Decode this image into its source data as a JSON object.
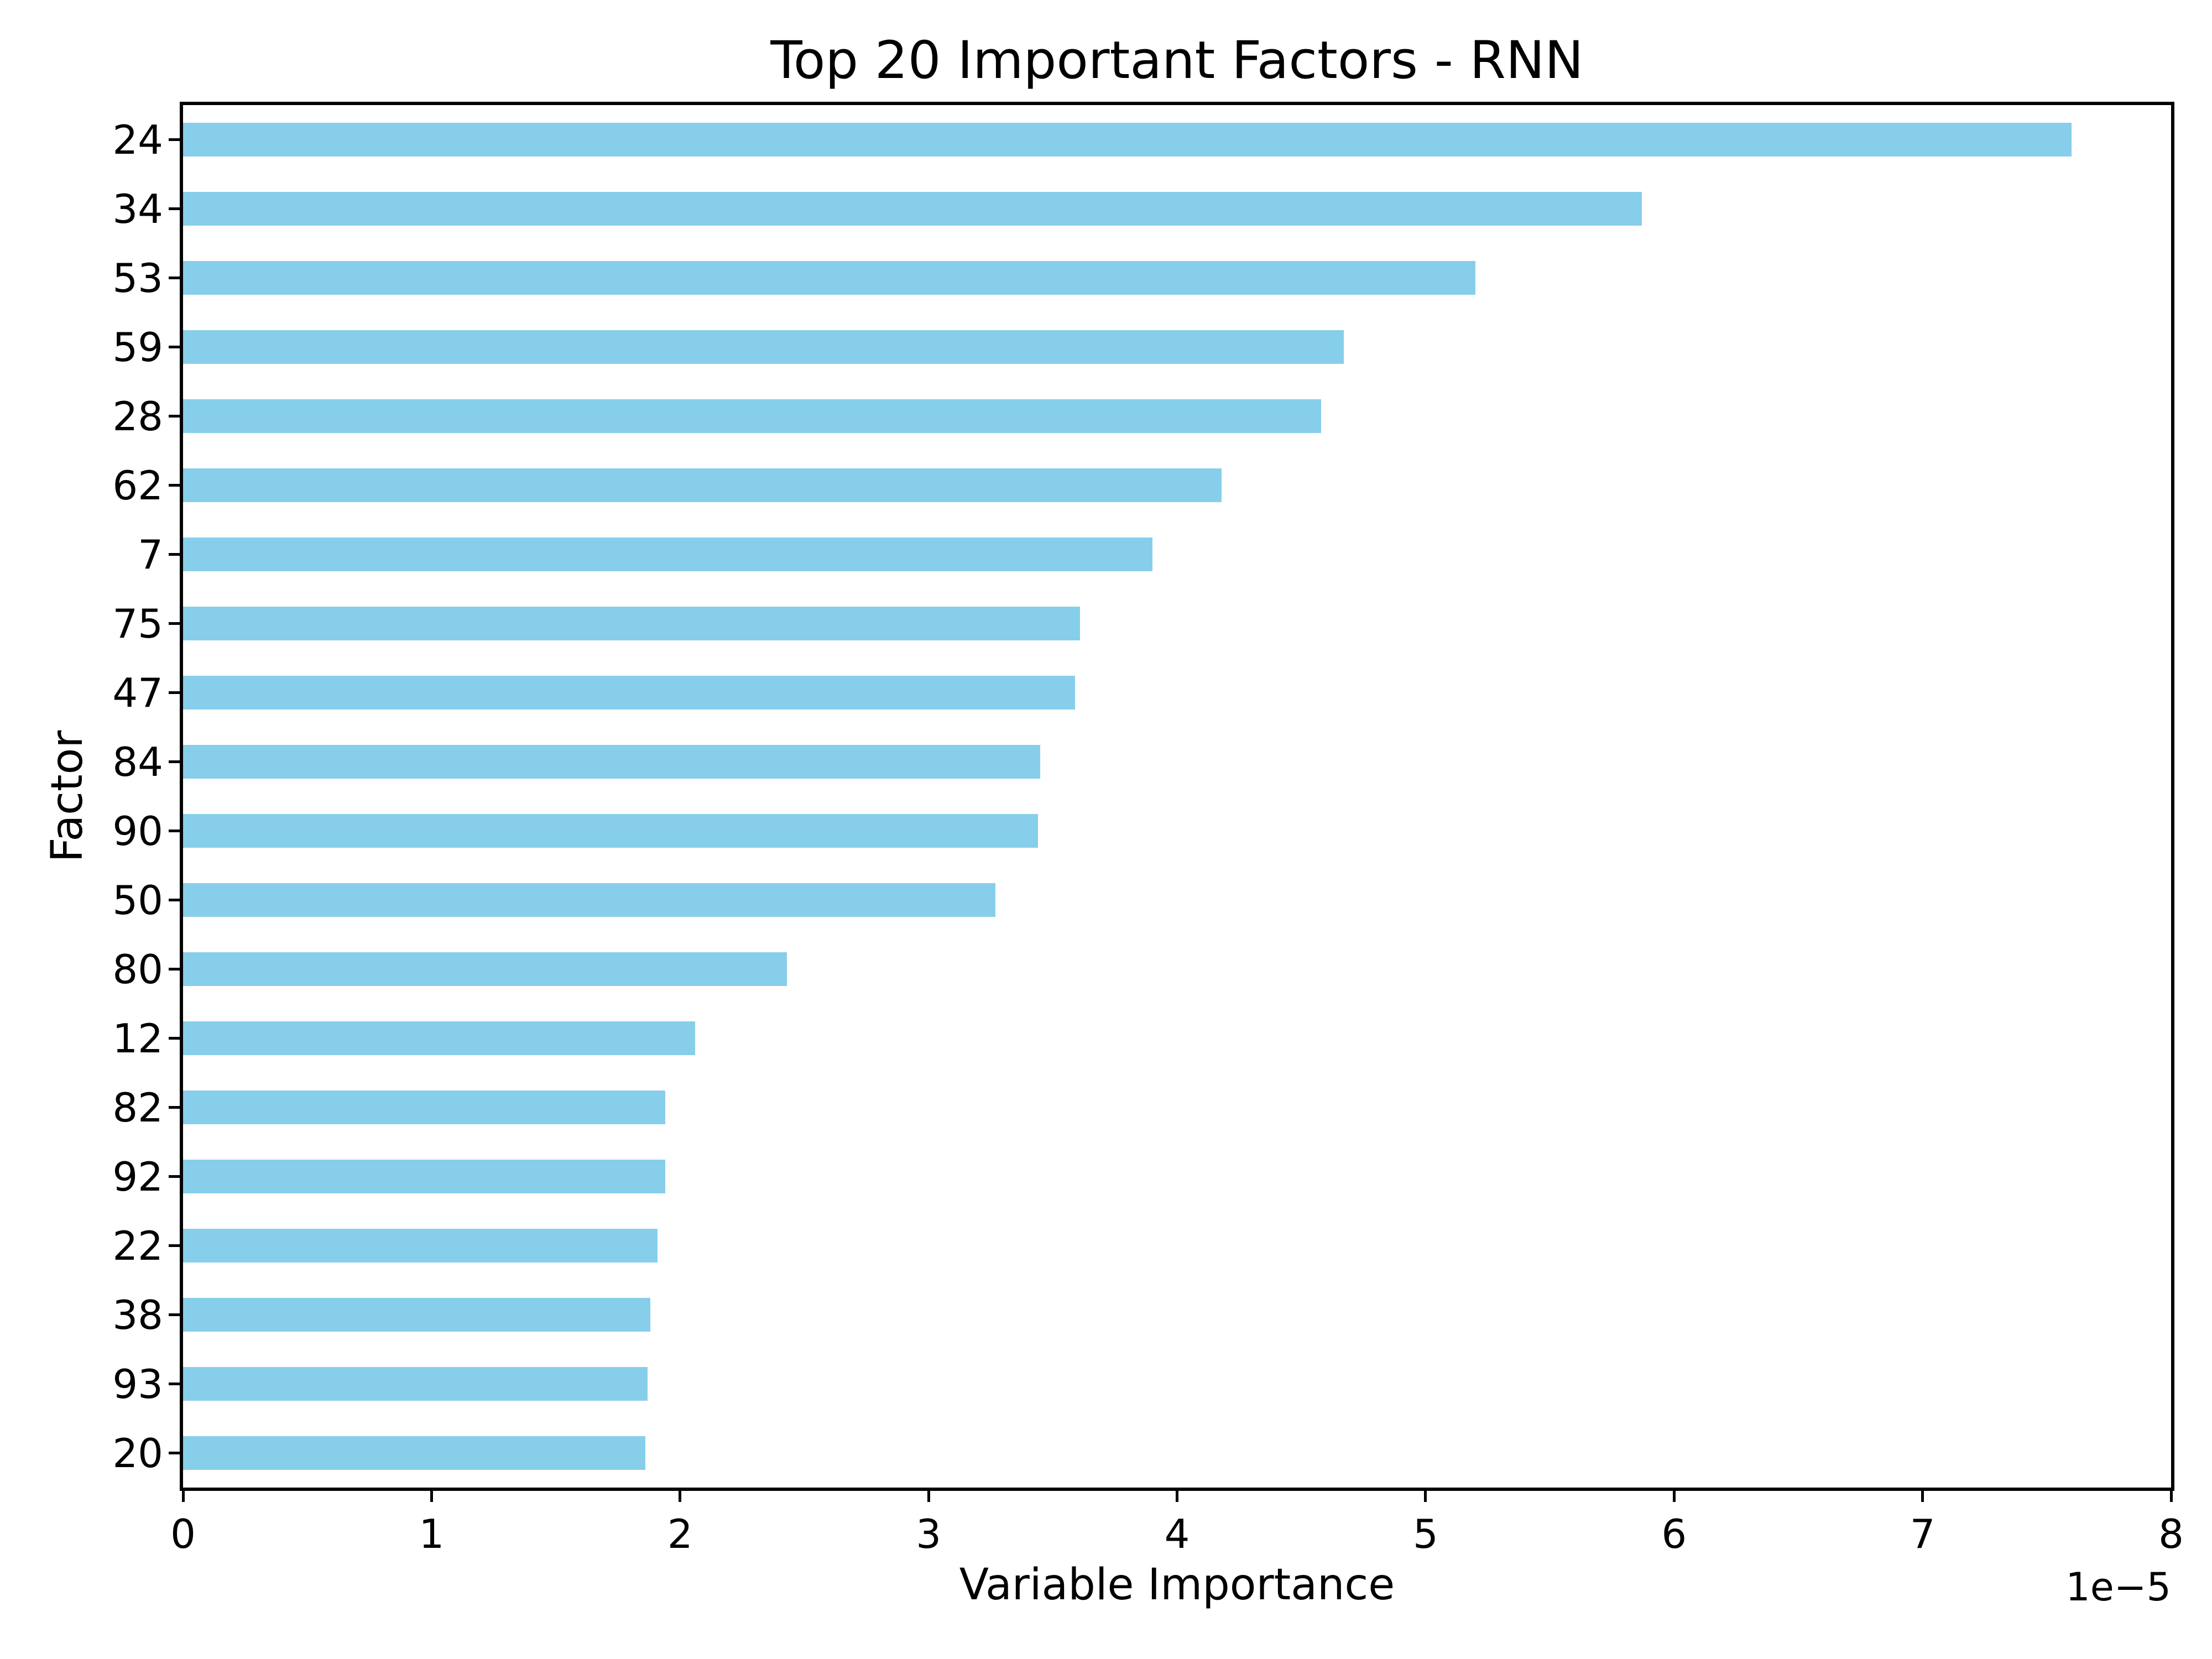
{
  "chart_data": {
    "type": "bar",
    "orientation": "horizontal",
    "title": "Top 20 Important Factors - RNN",
    "xlabel": "Variable Importance",
    "ylabel": "Factor",
    "x_offset_text": "1e−5",
    "value_multiplier": "1e-5",
    "categories": [
      "24",
      "34",
      "53",
      "59",
      "28",
      "62",
      "7",
      "75",
      "47",
      "84",
      "90",
      "50",
      "80",
      "12",
      "82",
      "92",
      "22",
      "38",
      "93",
      "20"
    ],
    "values": [
      7.6,
      5.87,
      5.2,
      4.67,
      4.58,
      4.18,
      3.9,
      3.61,
      3.59,
      3.45,
      3.44,
      3.27,
      2.43,
      2.06,
      1.94,
      1.94,
      1.91,
      1.88,
      1.87,
      1.86
    ],
    "xlim": [
      0,
      8
    ],
    "xticks": [
      "0",
      "1",
      "2",
      "3",
      "4",
      "5",
      "6",
      "7",
      "8"
    ],
    "bar_color": "#87CEEB",
    "text_color": "#000000",
    "grid": false,
    "legend": null
  }
}
